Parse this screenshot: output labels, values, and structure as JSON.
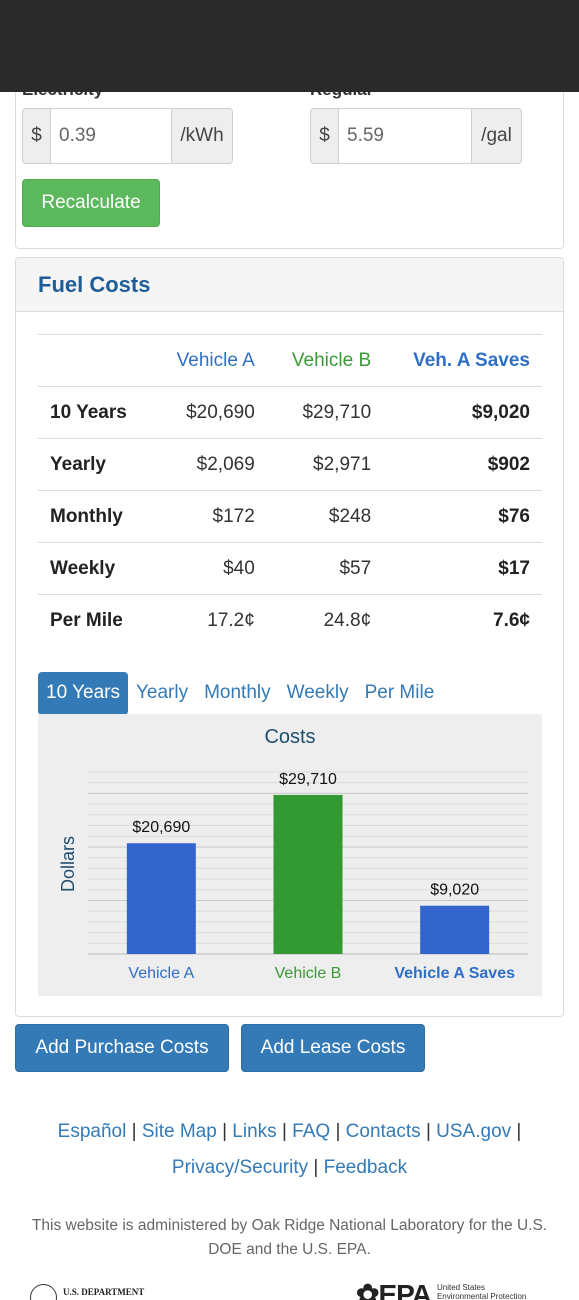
{
  "inputs": {
    "electricity": {
      "label": "Electricity",
      "prefix": "$",
      "value": "0.39",
      "suffix": "/kWh"
    },
    "regular": {
      "label": "Regular",
      "prefix": "$",
      "value": "5.59",
      "suffix": "/gal"
    },
    "recalculate_label": "Recalculate"
  },
  "fuel_costs": {
    "title": "Fuel Costs",
    "headers": {
      "vehicle_a": "Vehicle A",
      "vehicle_b": "Vehicle B",
      "saves": "Veh. A Saves"
    },
    "rows": [
      {
        "label": "10 Years",
        "a": "$20,690",
        "b": "$29,710",
        "saves": "$9,020"
      },
      {
        "label": "Yearly",
        "a": "$2,069",
        "b": "$2,971",
        "saves": "$902"
      },
      {
        "label": "Monthly",
        "a": "$172",
        "b": "$248",
        "saves": "$76"
      },
      {
        "label": "Weekly",
        "a": "$40",
        "b": "$57",
        "saves": "$17"
      },
      {
        "label": "Per Mile",
        "a": "17.2¢",
        "b": "24.8¢",
        "saves": "7.6¢"
      }
    ],
    "tabs": [
      "10 Years",
      "Yearly",
      "Monthly",
      "Weekly",
      "Per Mile"
    ],
    "active_tab": "10 Years"
  },
  "chart_data": {
    "type": "bar",
    "title": "Costs",
    "ylabel": "Dollars",
    "xlabel": "",
    "categories": [
      "Vehicle A",
      "Vehicle B",
      "Vehicle A Saves"
    ],
    "values": [
      20690,
      29710,
      9020
    ],
    "value_labels": [
      "$20,690",
      "$29,710",
      "$9,020"
    ],
    "colors": [
      "#3366cc",
      "#339933",
      "#3366cc"
    ],
    "label_colors": [
      "#2f6fc7",
      "#3a9a35",
      "#2f6fc7"
    ],
    "ylim": [
      0,
      34000
    ],
    "grid": true
  },
  "actions": {
    "add_purchase": "Add Purchase Costs",
    "add_lease": "Add Lease Costs"
  },
  "footer": {
    "links": [
      "Español",
      "Site Map",
      "Links",
      "FAQ",
      "Contacts",
      "USA.gov",
      "Privacy/Security",
      "Feedback"
    ],
    "separator": "|",
    "note": "This website is administered by Oak Ridge National Laboratory for the U.S. DOE and the U.S. EPA.",
    "doe_text": "U.S. DEPARTMENT",
    "epa_word": "EPA",
    "epa_sub_1": "United States",
    "epa_sub_2": "Environmental Protection"
  }
}
